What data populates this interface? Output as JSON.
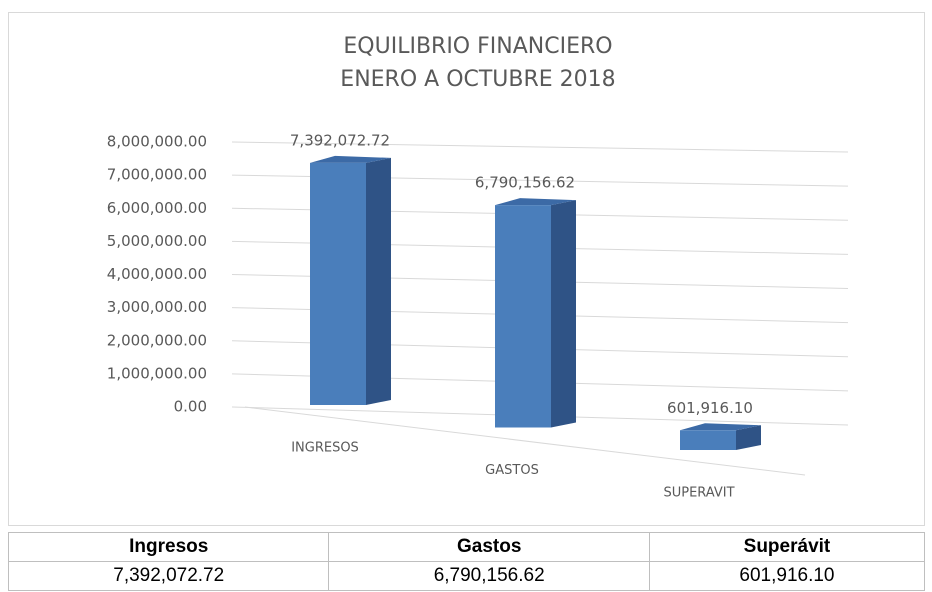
{
  "chart_data": {
    "type": "bar3d",
    "title": [
      "EQUILIBRIO FINANCIERO",
      "ENERO A OCTUBRE 2018"
    ],
    "categories": [
      "INGRESOS",
      "GASTOS",
      "SUPERAVIT"
    ],
    "values": [
      7392072.72,
      6790156.62,
      601916.1
    ],
    "value_labels": [
      "7,392,072.72",
      "6,790,156.62",
      "601,916.10"
    ],
    "color": "#4a7ebb",
    "ylim": [
      0,
      8000000
    ],
    "yticks": [
      {
        "value": 0,
        "label": "0.00"
      },
      {
        "value": 1000000,
        "label": "1,000,000.00"
      },
      {
        "value": 2000000,
        "label": "2,000,000.00"
      },
      {
        "value": 3000000,
        "label": "3,000,000.00"
      },
      {
        "value": 4000000,
        "label": "4,000,000.00"
      },
      {
        "value": 5000000,
        "label": "5,000,000.00"
      },
      {
        "value": 6000000,
        "label": "6,000,000.00"
      },
      {
        "value": 7000000,
        "label": "7,000,000.00"
      },
      {
        "value": 8000000,
        "label": "8,000,000.00"
      }
    ],
    "grid": true
  },
  "table": {
    "headers": [
      "Ingresos",
      "Gastos",
      "Superávit"
    ],
    "rows": [
      [
        "7,392,072.72",
        "6,790,156.62",
        "601,916.10"
      ]
    ]
  }
}
